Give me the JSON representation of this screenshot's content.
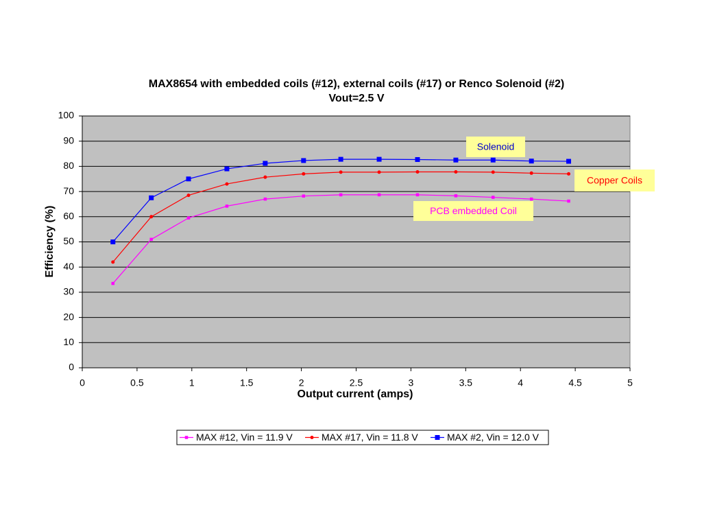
{
  "chart_data": {
    "type": "line",
    "title": "MAX8654 with embedded coils (#12), external coils (#17) or Renco Solenoid (#2)",
    "subtitle": "Vout=2.5 V",
    "x_label": "Output current (amps)",
    "y_label": "Efficiency (%)",
    "x": [
      0.28,
      0.63,
      0.97,
      1.32,
      1.67,
      2.02,
      2.36,
      2.71,
      3.06,
      3.41,
      3.75,
      4.1,
      4.44
    ],
    "series": [
      {
        "name": "MAX #12, Vin = 11.9 V",
        "color": "#ff00ff",
        "marker": "square-small",
        "values": [
          33.5,
          51,
          59.5,
          64.2,
          67,
          68.2,
          68.7,
          68.7,
          68.7,
          68.3,
          67.7,
          67,
          66.2
        ]
      },
      {
        "name": "MAX #17, Vin = 11.8 V",
        "color": "#ff0000",
        "marker": "circle",
        "values": [
          42,
          60,
          68.5,
          73,
          75.7,
          77,
          77.7,
          77.7,
          77.8,
          77.8,
          77.7,
          77.3,
          77
        ]
      },
      {
        "name": "MAX #2, Vin = 12.0 V",
        "color": "#0000ff",
        "marker": "square",
        "values": [
          50,
          67.5,
          75,
          79,
          81.2,
          82.3,
          82.8,
          82.8,
          82.7,
          82.5,
          82.5,
          82.1,
          82
        ]
      }
    ],
    "annotations": [
      {
        "text": "Solenoid",
        "color": "#0000cc"
      },
      {
        "text": "Copper Coils",
        "color": "#ff0000"
      },
      {
        "text": "PCB embedded Coil",
        "color": "#ff00ff"
      }
    ],
    "xlim": [
      0,
      5
    ],
    "xticks": [
      0,
      0.5,
      1,
      1.5,
      2,
      2.5,
      3,
      3.5,
      4,
      4.5,
      5
    ],
    "ylim": [
      0,
      100
    ],
    "yticks": [
      0,
      10,
      20,
      30,
      40,
      50,
      60,
      70,
      80,
      90,
      100
    ],
    "grid": true,
    "legend": "bottom",
    "plot_background": "#c0c0c0"
  }
}
